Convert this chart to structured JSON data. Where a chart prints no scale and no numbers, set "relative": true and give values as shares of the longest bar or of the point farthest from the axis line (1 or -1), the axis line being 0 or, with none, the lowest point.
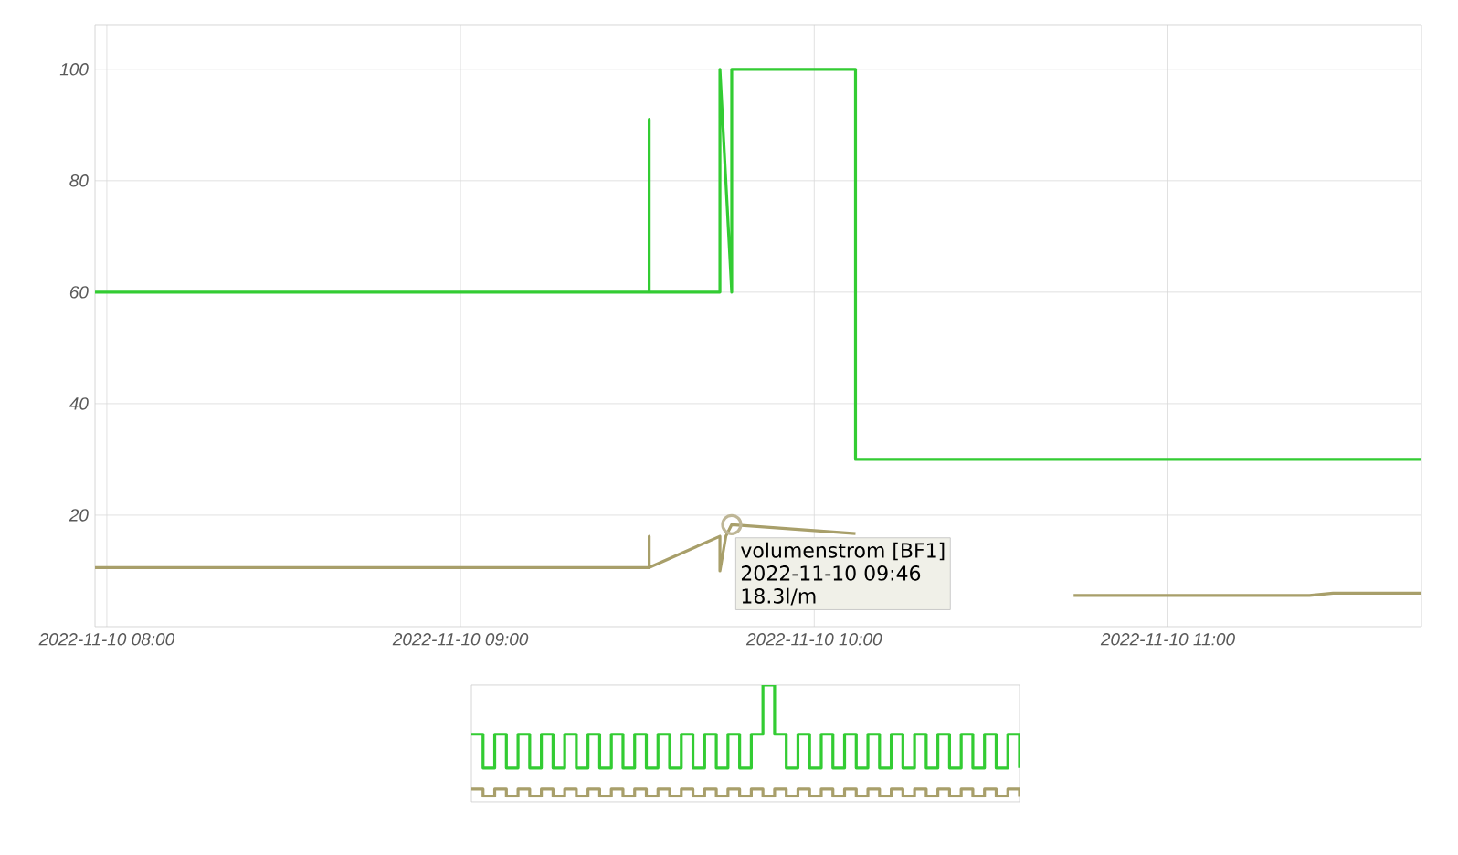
{
  "chart_data": [
    {
      "type": "line",
      "xlim": [
        "2022-11-10T07:58",
        "2022-11-10T11:43"
      ],
      "ylim": [
        0,
        108
      ],
      "xticks": [
        {
          "value": "2022-11-10T08:00",
          "label": "2022-11-10 08:00"
        },
        {
          "value": "2022-11-10T09:00",
          "label": "2022-11-10 09:00"
        },
        {
          "value": "2022-11-10T10:00",
          "label": "2022-11-10 10:00"
        },
        {
          "value": "2022-11-10T11:00",
          "label": "2022-11-10 11:00"
        }
      ],
      "yticks": [
        20,
        40,
        60,
        80,
        100
      ],
      "grid": true,
      "marker": "none",
      "line_style": "solid",
      "series": [
        {
          "color": "#33cc33",
          "x": [
            "2022-11-10T07:58",
            "2022-11-10T09:32",
            "2022-11-10T09:32",
            "2022-11-10T09:32",
            "2022-11-10T09:44",
            "2022-11-10T09:44",
            "2022-11-10T09:44",
            "2022-11-10T09:44",
            "2022-11-10T09:45",
            "2022-11-10T09:46",
            "2022-11-10T09:46",
            "2022-11-10T09:46",
            "2022-11-10T10:07",
            "2022-11-10T10:07",
            "2022-11-10T11:43"
          ],
          "values": [
            60,
            60,
            91,
            60,
            60,
            91,
            60,
            100,
            80,
            60,
            60,
            100,
            100,
            30,
            30
          ]
        },
        {
          "color": "#a89f6a",
          "x": [
            "2022-11-10T07:58",
            "2022-11-10T09:32",
            "2022-11-10T09:32",
            "2022-11-10T09:32",
            "2022-11-10T09:44",
            "2022-11-10T09:44",
            "2022-11-10T09:44",
            "2022-11-10T09:44",
            "2022-11-10T09:44",
            "2022-11-10T09:45",
            "2022-11-10T09:46",
            "2022-11-10T10:07",
            "2022-11-10T10:24",
            "2022-11-10T10:44",
            "2022-11-10T11:24",
            "2022-11-10T11:28",
            "2022-11-10T11:43"
          ],
          "values": [
            10.6,
            10.6,
            16.2,
            10.6,
            16.2,
            10,
            16.2,
            16.2,
            10,
            16.2,
            18.3,
            16.7,
            null,
            5.6,
            5.6,
            6.0,
            6.0
          ]
        }
      ],
      "annotations": [
        {
          "text": "volumenstrom [BF1]",
          "x": "2022-11-10T09:46",
          "y": 18.3
        },
        "2022-11-10 09:46",
        "18.3l/m"
      ]
    },
    {
      "type": "step",
      "relative": true,
      "categories": [
        null,
        null,
        null,
        null,
        null,
        null,
        null,
        null,
        null,
        null,
        null,
        null,
        null,
        null,
        null,
        null,
        null,
        null,
        null,
        null,
        null,
        null,
        null,
        null,
        null,
        null,
        null,
        null,
        null,
        null,
        null,
        null,
        null,
        null,
        null,
        null,
        null,
        null,
        null,
        null,
        null,
        null,
        null,
        null,
        null,
        null,
        null,
        null
      ],
      "series": [
        {
          "color": "#33cc33",
          "values": [
            0.58,
            0.29,
            0.58,
            0.29,
            0.58,
            0.29,
            0.58,
            0.29,
            0.58,
            0.29,
            0.58,
            0.29,
            0.58,
            0.29,
            0.58,
            0.29,
            0.58,
            0.29,
            0.58,
            0.29,
            0.58,
            0.29,
            0.58,
            0.29,
            0.58,
            1,
            0.58,
            0.29,
            0.58,
            0.29,
            0.58,
            0.29,
            0.58,
            0.29,
            0.58,
            0.29,
            0.58,
            0.29,
            0.58,
            0.29,
            0.58,
            0.29,
            0.58,
            0.29,
            0.58,
            0.29,
            0.58,
            0.29
          ]
        },
        {
          "color": "#a89f6a",
          "values": [
            0.11,
            0.05,
            0.11,
            0.05,
            0.11,
            0.05,
            0.11,
            0.05,
            0.11,
            0.05,
            0.11,
            0.05,
            0.11,
            0.05,
            0.11,
            0.05,
            0.11,
            0.05,
            0.11,
            0.05,
            0.11,
            0.05,
            0.11,
            0.05,
            0.11,
            0.05,
            0.11,
            0.05,
            0.11,
            0.05,
            0.11,
            0.05,
            0.11,
            0.05,
            0.11,
            0.05,
            0.11,
            0.05,
            0.11,
            0.05,
            0.11,
            0.05,
            0.11,
            0.05,
            0.11,
            0.05,
            0.11,
            0.05
          ]
        }
      ]
    }
  ]
}
